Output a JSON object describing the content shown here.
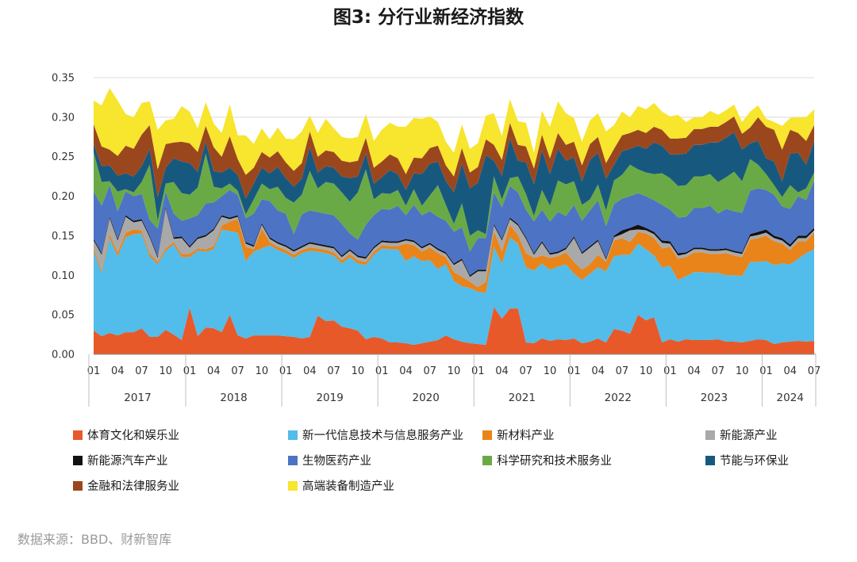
{
  "chart_data": {
    "type": "area",
    "stacked": true,
    "title": "图3: 分行业新经济指数",
    "source": "数据来源：BBD、财新智库",
    "ylim": [
      0,
      0.35
    ],
    "yticks": [
      "0.00",
      "0.05",
      "0.10",
      "0.15",
      "0.20",
      "0.25",
      "0.30",
      "0.35"
    ],
    "year_labels": [
      "2017",
      "2018",
      "2019",
      "2020",
      "2021",
      "2022",
      "2023",
      "2024"
    ],
    "month_tick_labels": [
      "01",
      "04",
      "07",
      "10"
    ],
    "x_months": 91,
    "legend_position": "bottom",
    "series": [
      {
        "name": "体育文化和娱乐业",
        "color": "#e8592a",
        "values": [
          0.03,
          0.023,
          0.027,
          0.024,
          0.028,
          0.028,
          0.033,
          0.022,
          0.022,
          0.031,
          0.025,
          0.018,
          0.059,
          0.023,
          0.034,
          0.033,
          0.028,
          0.05,
          0.024,
          0.02,
          0.024,
          0.024,
          0.024,
          0.024,
          0.023,
          0.022,
          0.02,
          0.022,
          0.049,
          0.042,
          0.043,
          0.035,
          0.033,
          0.03,
          0.019,
          0.022,
          0.02,
          0.015,
          0.015,
          0.014,
          0.012,
          0.014,
          0.016,
          0.018,
          0.024,
          0.019,
          0.016,
          0.014,
          0.013,
          0.012,
          0.06,
          0.045,
          0.058,
          0.058,
          0.015,
          0.014,
          0.02,
          0.017,
          0.019,
          0.018,
          0.02,
          0.014,
          0.016,
          0.02,
          0.015,
          0.032,
          0.03,
          0.026,
          0.05,
          0.043,
          0.047,
          0.015,
          0.019,
          0.016,
          0.019,
          0.018,
          0.018,
          0.018,
          0.019,
          0.016,
          0.016,
          0.015,
          0.017,
          0.019,
          0.018,
          0.013,
          0.015,
          0.016,
          0.017,
          0.016,
          0.017
        ]
      },
      {
        "name": "新一代信息技术与信息服务产业",
        "color": "#52bcea",
        "values": [
          0.1,
          0.08,
          0.12,
          0.1,
          0.12,
          0.124,
          0.12,
          0.102,
          0.092,
          0.1,
          0.114,
          0.105,
          0.064,
          0.108,
          0.096,
          0.1,
          0.13,
          0.106,
          0.13,
          0.098,
          0.106,
          0.11,
          0.114,
          0.108,
          0.105,
          0.1,
          0.108,
          0.109,
          0.081,
          0.086,
          0.082,
          0.08,
          0.09,
          0.085,
          0.094,
          0.104,
          0.114,
          0.118,
          0.118,
          0.104,
          0.112,
          0.104,
          0.103,
          0.09,
          0.09,
          0.074,
          0.07,
          0.07,
          0.066,
          0.066,
          0.076,
          0.07,
          0.09,
          0.082,
          0.095,
          0.092,
          0.095,
          0.09,
          0.092,
          0.096,
          0.082,
          0.08,
          0.086,
          0.09,
          0.09,
          0.092,
          0.096,
          0.1,
          0.09,
          0.09,
          0.078,
          0.095,
          0.093,
          0.078,
          0.08,
          0.086,
          0.086,
          0.085,
          0.084,
          0.084,
          0.084,
          0.084,
          0.1,
          0.098,
          0.1,
          0.1,
          0.1,
          0.098,
          0.104,
          0.112,
          0.116
        ]
      },
      {
        "name": "新材料产业",
        "color": "#e8841a",
        "values": [
          0.004,
          0.003,
          0.005,
          0.005,
          0.006,
          0.006,
          0.004,
          0.004,
          0.003,
          0.003,
          0.003,
          0.004,
          0.004,
          0.003,
          0.003,
          0.004,
          0.005,
          0.012,
          0.017,
          0.018,
          0.003,
          0.025,
          0.004,
          0.004,
          0.004,
          0.004,
          0.004,
          0.004,
          0.004,
          0.004,
          0.004,
          0.004,
          0.004,
          0.004,
          0.004,
          0.004,
          0.004,
          0.004,
          0.004,
          0.022,
          0.014,
          0.012,
          0.016,
          0.02,
          0.009,
          0.011,
          0.012,
          0.008,
          0.006,
          0.014,
          0.02,
          0.015,
          0.016,
          0.011,
          0.018,
          0.016,
          0.01,
          0.015,
          0.013,
          0.015,
          0.015,
          0.013,
          0.012,
          0.016,
          0.012,
          0.02,
          0.021,
          0.016,
          0.015,
          0.02,
          0.022,
          0.024,
          0.024,
          0.027,
          0.024,
          0.025,
          0.025,
          0.024,
          0.024,
          0.028,
          0.025,
          0.024,
          0.028,
          0.03,
          0.032,
          0.03,
          0.025,
          0.018,
          0.022,
          0.015,
          0.021
        ]
      },
      {
        "name": "新能源产业",
        "color": "#a9a9a9",
        "values": [
          0.01,
          0.02,
          0.02,
          0.015,
          0.02,
          0.009,
          0.012,
          0.02,
          0.005,
          0.05,
          0.004,
          0.02,
          0.008,
          0.012,
          0.016,
          0.02,
          0.011,
          0.003,
          0.003,
          0.004,
          0.003,
          0.005,
          0.004,
          0.004,
          0.004,
          0.004,
          0.003,
          0.005,
          0.004,
          0.004,
          0.005,
          0.004,
          0.004,
          0.004,
          0.004,
          0.004,
          0.004,
          0.004,
          0.004,
          0.004,
          0.004,
          0.004,
          0.004,
          0.004,
          0.004,
          0.009,
          0.021,
          0.006,
          0.02,
          0.013,
          0.007,
          0.014,
          0.007,
          0.012,
          0.018,
          0.004,
          0.016,
          0.004,
          0.004,
          0.004,
          0.03,
          0.02,
          0.021,
          0.017,
          0.003,
          0.004,
          0.005,
          0.015,
          0.003,
          0.004,
          0.005,
          0.007,
          0.004,
          0.004,
          0.004,
          0.004,
          0.004,
          0.004,
          0.004,
          0.004,
          0.004,
          0.004,
          0.004,
          0.004,
          0.004,
          0.004,
          0.004,
          0.004,
          0.004,
          0.004,
          0.003
        ]
      },
      {
        "name": "新能源汽车产业",
        "color": "#111111",
        "values": [
          0.002,
          0.002,
          0.002,
          0.002,
          0.002,
          0.002,
          0.002,
          0.002,
          0.002,
          0.002,
          0.002,
          0.002,
          0.002,
          0.002,
          0.002,
          0.002,
          0.002,
          0.002,
          0.002,
          0.002,
          0.002,
          0.002,
          0.002,
          0.002,
          0.002,
          0.002,
          0.002,
          0.002,
          0.002,
          0.002,
          0.002,
          0.002,
          0.002,
          0.002,
          0.002,
          0.002,
          0.002,
          0.002,
          0.002,
          0.002,
          0.002,
          0.002,
          0.002,
          0.002,
          0.002,
          0.002,
          0.002,
          0.002,
          0.002,
          0.002,
          0.002,
          0.002,
          0.002,
          0.002,
          0.002,
          0.002,
          0.002,
          0.002,
          0.002,
          0.002,
          0.002,
          0.002,
          0.002,
          0.002,
          0.002,
          0.002,
          0.005,
          0.003,
          0.006,
          0.003,
          0.003,
          0.003,
          0.003,
          0.003,
          0.002,
          0.002,
          0.002,
          0.002,
          0.002,
          0.002,
          0.002,
          0.002,
          0.003,
          0.004,
          0.004,
          0.003,
          0.003,
          0.003,
          0.003,
          0.003,
          0.003
        ]
      },
      {
        "name": "生物医药产业",
        "color": "#4d73c4",
        "values": [
          0.06,
          0.06,
          0.04,
          0.035,
          0.03,
          0.031,
          0.032,
          0.02,
          0.035,
          0.02,
          0.03,
          0.02,
          0.035,
          0.028,
          0.04,
          0.033,
          0.024,
          0.035,
          0.026,
          0.03,
          0.04,
          0.03,
          0.046,
          0.04,
          0.04,
          0.02,
          0.04,
          0.04,
          0.04,
          0.04,
          0.04,
          0.04,
          0.02,
          0.02,
          0.041,
          0.04,
          0.04,
          0.04,
          0.045,
          0.03,
          0.045,
          0.04,
          0.04,
          0.04,
          0.04,
          0.04,
          0.04,
          0.03,
          0.04,
          0.04,
          0.04,
          0.04,
          0.04,
          0.04,
          0.035,
          0.04,
          0.04,
          0.04,
          0.05,
          0.04,
          0.04,
          0.04,
          0.045,
          0.05,
          0.04,
          0.04,
          0.04,
          0.04,
          0.04,
          0.04,
          0.04,
          0.045,
          0.04,
          0.045,
          0.045,
          0.05,
          0.05,
          0.055,
          0.045,
          0.05,
          0.05,
          0.05,
          0.055,
          0.055,
          0.05,
          0.052,
          0.04,
          0.045,
          0.05,
          0.045,
          0.06
        ]
      },
      {
        "name": "科学研究和技术服务业",
        "color": "#6aaa46",
        "values": [
          0.05,
          0.03,
          0.005,
          0.025,
          0.003,
          0.005,
          0.015,
          0.07,
          0.01,
          0.01,
          0.04,
          0.035,
          0.03,
          0.035,
          0.063,
          0.02,
          0.01,
          0.008,
          0.005,
          0.005,
          0.018,
          0.02,
          0.015,
          0.03,
          0.02,
          0.04,
          0.025,
          0.05,
          0.03,
          0.04,
          0.04,
          0.04,
          0.04,
          0.06,
          0.07,
          0.02,
          0.02,
          0.02,
          0.02,
          0.012,
          0.02,
          0.012,
          0.02,
          0.04,
          0.02,
          0.01,
          0.03,
          0.02,
          0.01,
          0.005,
          0.02,
          0.01,
          0.01,
          0.02,
          0.02,
          0.007,
          0.025,
          0.02,
          0.04,
          0.04,
          0.03,
          0.02,
          0.014,
          0.02,
          0.02,
          0.03,
          0.03,
          0.04,
          0.03,
          0.03,
          0.033,
          0.04,
          0.04,
          0.04,
          0.04,
          0.04,
          0.04,
          0.04,
          0.04,
          0.04,
          0.05,
          0.04,
          0.04,
          0.03,
          0.02,
          0.012,
          0.012,
          0.03,
          0.005,
          0.015,
          0.01
        ]
      },
      {
        "name": "节能与环保业",
        "color": "#17597e",
        "values": [
          0.01,
          0.02,
          0.02,
          0.02,
          0.02,
          0.02,
          0.02,
          0.02,
          0.03,
          0.02,
          0.03,
          0.04,
          0.04,
          0.02,
          0.015,
          0.02,
          0.02,
          0.02,
          0.02,
          0.02,
          0.02,
          0.02,
          0.02,
          0.025,
          0.025,
          0.02,
          0.02,
          0.03,
          0.02,
          0.02,
          0.02,
          0.02,
          0.03,
          0.02,
          0.02,
          0.02,
          0.02,
          0.03,
          0.02,
          0.02,
          0.02,
          0.04,
          0.04,
          0.03,
          0.03,
          0.04,
          0.05,
          0.06,
          0.06,
          0.1,
          0.02,
          0.03,
          0.05,
          0.02,
          0.04,
          0.04,
          0.05,
          0.04,
          0.04,
          0.03,
          0.03,
          0.03,
          0.05,
          0.04,
          0.04,
          0.02,
          0.03,
          0.02,
          0.03,
          0.03,
          0.04,
          0.035,
          0.03,
          0.04,
          0.04,
          0.04,
          0.04,
          0.04,
          0.05,
          0.05,
          0.05,
          0.04,
          0.02,
          0.03,
          0.02,
          0.03,
          0.02,
          0.04,
          0.05,
          0.03,
          0.04
        ]
      },
      {
        "name": "金融和法律服务业",
        "color": "#9b471e",
        "values": [
          0.025,
          0.025,
          0.02,
          0.025,
          0.035,
          0.035,
          0.04,
          0.03,
          0.035,
          0.03,
          0.02,
          0.025,
          0.025,
          0.025,
          0.02,
          0.03,
          0.02,
          0.04,
          0.02,
          0.03,
          0.02,
          0.02,
          0.02,
          0.02,
          0.02,
          0.02,
          0.02,
          0.02,
          0.02,
          0.02,
          0.02,
          0.02,
          0.02,
          0.02,
          0.02,
          0.02,
          0.02,
          0.02,
          0.02,
          0.02,
          0.02,
          0.02,
          0.02,
          0.02,
          0.02,
          0.02,
          0.02,
          0.02,
          0.02,
          0.02,
          0.02,
          0.02,
          0.02,
          0.02,
          0.02,
          0.02,
          0.02,
          0.02,
          0.02,
          0.02,
          0.02,
          0.02,
          0.02,
          0.02,
          0.02,
          0.02,
          0.02,
          0.02,
          0.02,
          0.02,
          0.02,
          0.02,
          0.02,
          0.02,
          0.02,
          0.02,
          0.02,
          0.02,
          0.02,
          0.02,
          0.02,
          0.02,
          0.02,
          0.03,
          0.04,
          0.04,
          0.04,
          0.03,
          0.025,
          0.03,
          0.02
        ]
      },
      {
        "name": "高端装备制造产业",
        "color": "#f7e52e",
        "values": [
          0.03,
          0.052,
          0.078,
          0.07,
          0.04,
          0.04,
          0.04,
          0.03,
          0.05,
          0.03,
          0.03,
          0.045,
          0.04,
          0.03,
          0.03,
          0.03,
          0.03,
          0.04,
          0.03,
          0.05,
          0.03,
          0.03,
          0.023,
          0.03,
          0.03,
          0.04,
          0.04,
          0.02,
          0.03,
          0.04,
          0.03,
          0.03,
          0.03,
          0.03,
          0.03,
          0.034,
          0.04,
          0.04,
          0.04,
          0.06,
          0.05,
          0.05,
          0.04,
          0.03,
          0.03,
          0.03,
          0.03,
          0.03,
          0.03,
          0.03,
          0.04,
          0.03,
          0.03,
          0.03,
          0.03,
          0.02,
          0.03,
          0.04,
          0.04,
          0.04,
          0.03,
          0.03,
          0.03,
          0.03,
          0.04,
          0.03,
          0.03,
          0.02,
          0.03,
          0.03,
          0.03,
          0.023,
          0.028,
          0.03,
          0.02,
          0.015,
          0.015,
          0.02,
          0.015,
          0.015,
          0.015,
          0.015,
          0.02,
          0.015,
          0.01,
          0.01,
          0.03,
          0.015,
          0.02,
          0.03,
          0.02
        ]
      }
    ]
  }
}
